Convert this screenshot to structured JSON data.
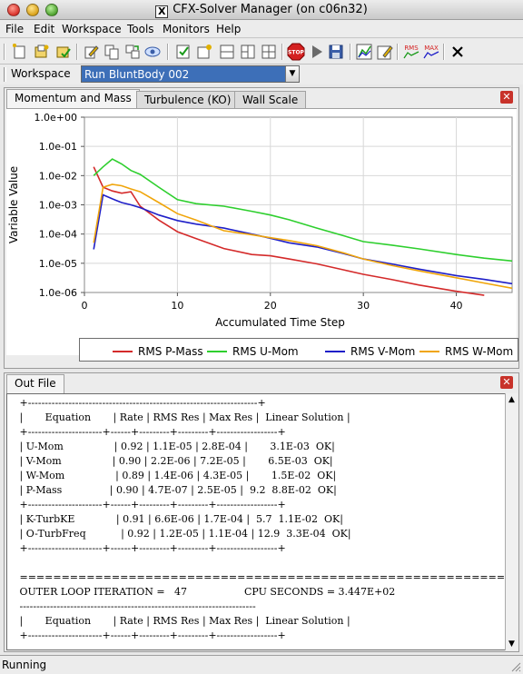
{
  "window": {
    "title": "CFX-Solver Manager (on c06n32)"
  },
  "menu": [
    "File",
    "Edit",
    "Workspace",
    "Tools",
    "Monitors",
    "Help"
  ],
  "toolbar": {
    "icons": [
      "new-run-icon",
      "open-results-icon",
      "save-results-icon",
      "edit-icon",
      "copy-icon",
      "merge-icon",
      "view-icon",
      "workspace-props-icon",
      "new-workspace-icon",
      "layout-1-icon",
      "layout-2-icon",
      "layout-3-icon",
      "stop-icon",
      "play-icon",
      "save-icon",
      "monitor-plot-icon",
      "monitor-edit-icon",
      "rms-icon",
      "max-icon",
      "close-icon"
    ],
    "rms_label": "RMS",
    "max_label": "MAX"
  },
  "workspace": {
    "label": "Workspace",
    "selected": "Run BluntBody 002"
  },
  "chart_panel": {
    "tabs": [
      "Momentum and Mass",
      "Turbulence (KO)",
      "Wall Scale"
    ],
    "active_tab": 0
  },
  "chart_data": {
    "type": "line",
    "xlabel": "Accumulated Time Step",
    "ylabel": "Variable Value",
    "yscale": "log",
    "xlim": [
      0,
      46
    ],
    "ylim": [
      1e-06,
      1
    ],
    "xticks": [
      "0",
      "10",
      "20",
      "30",
      "40"
    ],
    "yticks": [
      "1.0e+00",
      "1.0e-01",
      "1.0e-02",
      "1.0e-03",
      "1.0e-04",
      "1.0e-05",
      "1.0e-06"
    ],
    "grid": true,
    "legend_position": "bottom",
    "series": [
      {
        "name": "RMS P-Mass",
        "color": "#d42a2a",
        "x": [
          1,
          2,
          3,
          4,
          5,
          6,
          8,
          10,
          12,
          15,
          18,
          20,
          22,
          25,
          28,
          30,
          33,
          36,
          40,
          43
        ],
        "y": [
          0.02,
          0.004,
          0.003,
          0.0025,
          0.0028,
          0.0009,
          0.0003,
          0.00012,
          7e-05,
          3.2e-05,
          2e-05,
          1.8e-05,
          1.4e-05,
          9.5e-06,
          5.8e-06,
          4.2e-06,
          2.8e-06,
          1.8e-06,
          1.1e-06,
          8e-07
        ]
      },
      {
        "name": "RMS U-Mom",
        "color": "#2ecf2e",
        "x": [
          1,
          2,
          3,
          4,
          5,
          6,
          8,
          10,
          12,
          15,
          18,
          20,
          22,
          25,
          28,
          30,
          33,
          36,
          40,
          43,
          46
        ],
        "y": [
          0.01,
          0.02,
          0.037,
          0.025,
          0.015,
          0.011,
          0.004,
          0.0015,
          0.0011,
          0.0009,
          0.0006,
          0.00045,
          0.00031,
          0.00016,
          8.5e-05,
          5.5e-05,
          4.2e-05,
          3.1e-05,
          2e-05,
          1.5e-05,
          1.2e-05
        ]
      },
      {
        "name": "RMS V-Mom",
        "color": "#1f1fc8",
        "x": [
          1,
          2,
          3,
          4,
          5,
          6,
          8,
          10,
          12,
          15,
          18,
          20,
          22,
          25,
          28,
          30,
          33,
          36,
          40,
          43,
          46
        ],
        "y": [
          3e-05,
          0.0022,
          0.0016,
          0.0012,
          0.001,
          0.0008,
          0.00045,
          0.00029,
          0.00022,
          0.00016,
          0.0001,
          7.2e-05,
          5e-05,
          3.6e-05,
          2.1e-05,
          1.4e-05,
          9.5e-06,
          6.3e-06,
          3.8e-06,
          2.8e-06,
          2e-06
        ]
      },
      {
        "name": "RMS W-Mom",
        "color": "#f0a50a",
        "x": [
          1,
          2,
          3,
          4,
          5,
          6,
          8,
          10,
          12,
          15,
          18,
          20,
          22,
          25,
          28,
          30,
          33,
          36,
          40,
          43,
          46
        ],
        "y": [
          5e-05,
          0.004,
          0.005,
          0.0045,
          0.0035,
          0.0028,
          0.0012,
          0.0005,
          0.0003,
          0.00013,
          9.5e-05,
          7.5e-05,
          6e-05,
          4e-05,
          2.2e-05,
          1.4e-05,
          8.5e-06,
          5.5e-06,
          3.2e-06,
          2.1e-06,
          1.4e-06
        ]
      }
    ]
  },
  "outfile": {
    "tab": "Out File",
    "lines": [
      " +--------------------------------------------------------------------+",
      " |       Equation       | Rate | RMS Res | Max Res |  Linear Solution |",
      " +----------------------+------+---------+---------+------------------+",
      " | U-Mom                | 0.92 | 1.1E-05 | 2.8E-04 |       3.1E-03  OK|",
      " | V-Mom                | 0.90 | 2.2E-06 | 7.2E-05 |       6.5E-03  OK|",
      " | W-Mom                | 0.89 | 1.4E-06 | 4.3E-05 |       1.5E-02  OK|",
      " | P-Mass               | 0.90 | 4.7E-07 | 2.5E-05 |  9.2  8.8E-02  OK|",
      " +----------------------+------+---------+---------+------------------+",
      " | K-TurbKE             | 0.91 | 6.6E-06 | 1.7E-04 |  5.7  1.1E-02  OK|",
      " | O-TurbFreq           | 0.92 | 1.2E-05 | 1.1E-04 | 12.9  3.3E-04  OK|",
      " +----------------------+------+---------+---------+------------------+",
      "",
      " ======================================================================",
      " OUTER LOOP ITERATION =   47                  CPU SECONDS = 3.447E+02",
      " ----------------------------------------------------------------------",
      " |       Equation       | Rate | RMS Res | Max Res |  Linear Solution |",
      " +----------------------+------+---------+---------+------------------+"
    ]
  },
  "status": {
    "text": "Running"
  }
}
